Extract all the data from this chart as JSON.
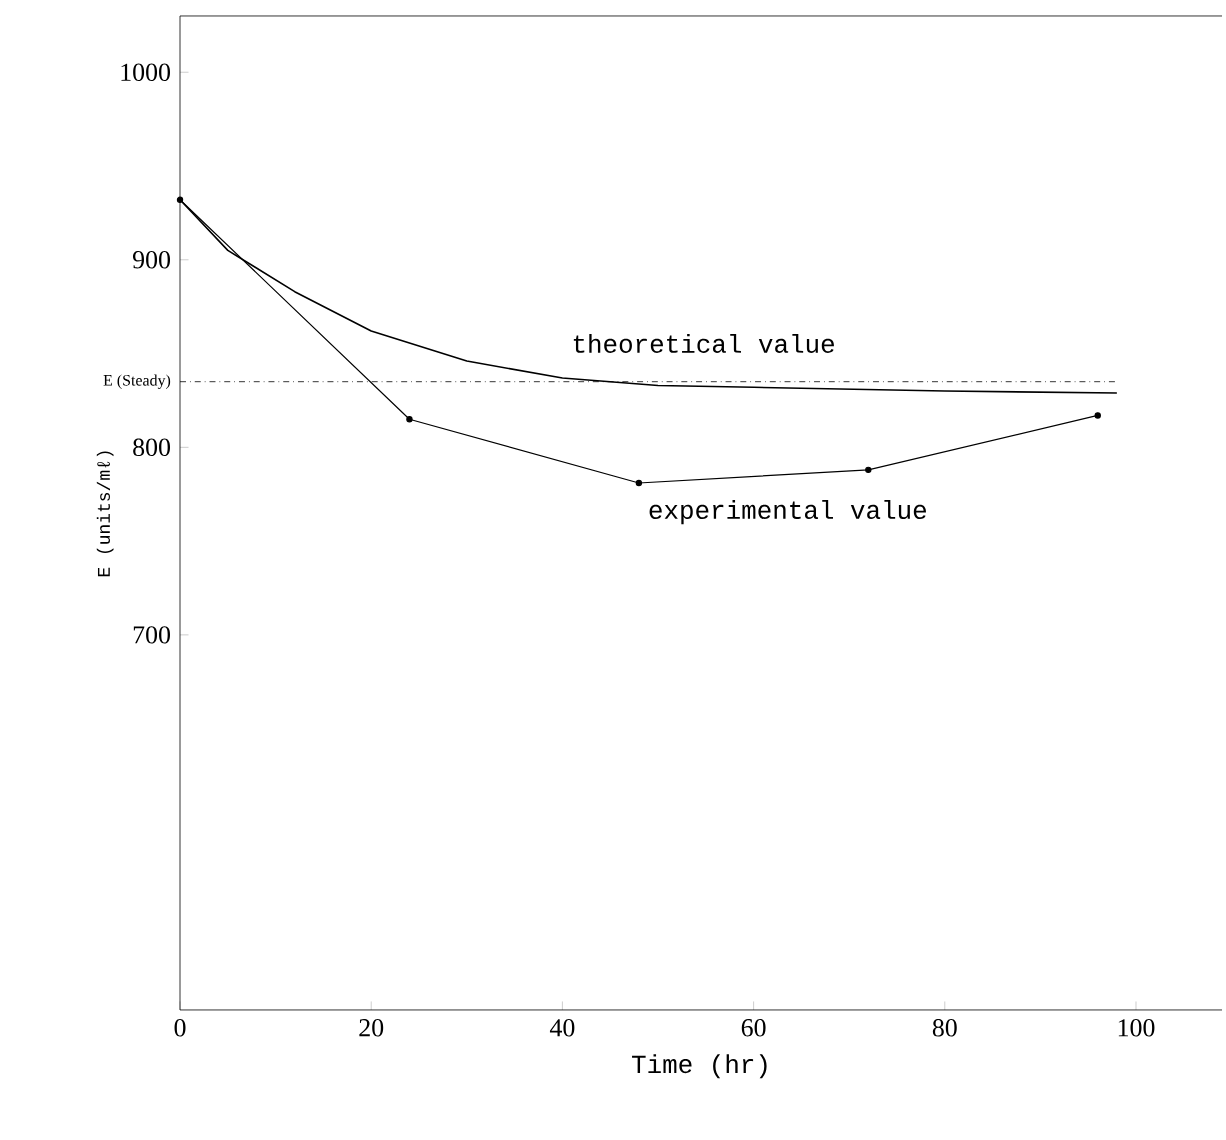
{
  "chart_data": {
    "type": "line",
    "xlabel": "Time (hr)",
    "ylabel": "E (units/mℓ)",
    "xlim": [
      0,
      109
    ],
    "ylim": [
      500,
      1030
    ],
    "xticks": [
      0,
      20,
      40,
      60,
      80,
      100
    ],
    "yticks": [
      700,
      800,
      900,
      1000
    ],
    "grid": false,
    "legend": false,
    "series": [
      {
        "name": "theoretical value",
        "color": "#000000",
        "marker": "none",
        "line_style": "solid",
        "x": [
          0,
          5,
          12,
          20,
          30,
          40,
          50,
          60,
          80,
          98
        ],
        "values": [
          932,
          905,
          883,
          862,
          846,
          837,
          833,
          832,
          830,
          829
        ]
      },
      {
        "name": "experimental value",
        "color": "#000000",
        "marker": "circle",
        "line_style": "solid",
        "x": [
          0,
          24,
          48,
          72,
          96
        ],
        "values": [
          932,
          815,
          781,
          788,
          817
        ]
      }
    ],
    "ref_lines": [
      {
        "axis": "y",
        "value": 835,
        "label": "E (Steady)",
        "line_style": "dashed",
        "color": "#000000"
      }
    ]
  }
}
